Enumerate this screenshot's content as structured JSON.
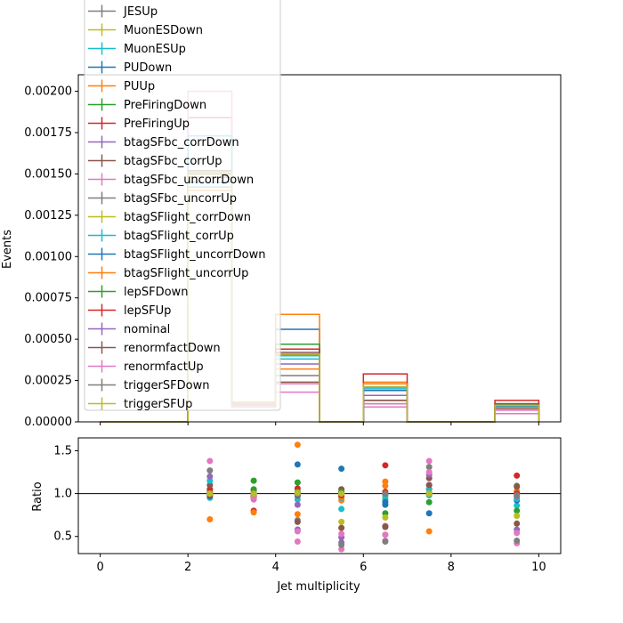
{
  "chart_data": [
    {
      "type": "histogram-step",
      "ylabel": "Events",
      "xlim": [
        -0.5,
        10.5
      ],
      "ylim": [
        0,
        0.0021
      ],
      "x_ticks": [
        0,
        2,
        4,
        6,
        8,
        10
      ],
      "y_ticks": [
        0.0,
        0.00025,
        0.0005,
        0.00075,
        0.001,
        0.00125,
        0.0015,
        0.00175,
        0.002
      ],
      "y_tick_labels": [
        "0.00000",
        "0.00025",
        "0.00050",
        "0.00075",
        "0.00100",
        "0.00125",
        "0.00150",
        "0.00175",
        "0.00200"
      ],
      "bin_edges": [
        0,
        1,
        2,
        3,
        4,
        5,
        6,
        7,
        8,
        9,
        10
      ],
      "legend_position": "upper-left",
      "legend_entries": [
        "JESUp",
        "MuonESDown",
        "MuonESUp",
        "PUDown",
        "PUUp",
        "PreFiringDown",
        "PreFiringUp",
        "btagSFbc_corrDown",
        "btagSFbc_corrUp",
        "btagSFbc_uncorrDown",
        "btagSFbc_uncorrUp",
        "btagSFlight_corrDown",
        "btagSFlight_corrUp",
        "btagSFlight_uncorrDown",
        "btagSFlight_uncorrUp",
        "lepSFDown",
        "lepSFUp",
        "nominal",
        "renormfactDown",
        "renormfactUp",
        "triggerSFDown",
        "triggerSFUp"
      ],
      "series": [
        {
          "name": "JESUp",
          "color": "#7f7f7f",
          "values": [
            0,
            0,
            0.0015,
            0.00011,
            0.00041,
            0,
            0.00021,
            0,
            0,
            0.0001
          ]
        },
        {
          "name": "MuonESDown",
          "color": "#bcbd22",
          "values": [
            0,
            0,
            0.00151,
            0.00011,
            0.00041,
            0,
            0.00021,
            0,
            0,
            0.0001
          ]
        },
        {
          "name": "MuonESUp",
          "color": "#17becf",
          "values": [
            0,
            0,
            0.00142,
            0.0001,
            0.00038,
            0,
            0.00019,
            0,
            0,
            9e-05
          ]
        },
        {
          "name": "PUDown",
          "color": "#1f77b4",
          "values": [
            0,
            0,
            0.00145,
            0.00011,
            0.00056,
            0,
            0.00019,
            0,
            0,
            9e-05
          ]
        },
        {
          "name": "PUUp",
          "color": "#ff7f0e",
          "values": [
            0,
            0,
            0.0014,
            0.0001,
            0.00065,
            0,
            0.00024,
            0,
            0,
            0.0001
          ]
        },
        {
          "name": "PreFiringDown",
          "color": "#2ca02c",
          "values": [
            0,
            0,
            0.00152,
            0.00012,
            0.00047,
            0,
            0.00021,
            0,
            0,
            0.00011
          ]
        },
        {
          "name": "PreFiringUp",
          "color": "#d62728",
          "values": [
            0,
            0,
            0.00184,
            0.00011,
            0.00044,
            0,
            0.00029,
            0,
            0,
            0.00013
          ]
        },
        {
          "name": "btagSFbc_corrDown",
          "color": "#9467bd",
          "values": [
            0,
            0,
            0.0015,
            0.00011,
            0.00035,
            0,
            0.00016,
            0,
            0,
            0.0001
          ]
        },
        {
          "name": "btagSFbc_corrUp",
          "color": "#8c564b",
          "values": [
            0,
            0,
            0.00152,
            0.00011,
            0.00042,
            0,
            0.00013,
            0,
            0,
            0.00011
          ]
        },
        {
          "name": "btagSFbc_uncorrDown",
          "color": "#e377c2",
          "values": [
            0,
            0,
            0.002,
            9e-05,
            0.00018,
            0,
            9e-05,
            0,
            0,
            5e-05
          ]
        },
        {
          "name": "btagSFbc_uncorrUp",
          "color": "#7f7f7f",
          "values": [
            0,
            0,
            0.00151,
            0.00011,
            0.00028,
            0,
            0.00011,
            0,
            0,
            0.0001
          ]
        },
        {
          "name": "btagSFlight_corrDown",
          "color": "#bcbd22",
          "values": [
            0,
            0,
            0.0015,
            0.00011,
            0.00041,
            0,
            0.00021,
            0,
            0,
            0.0001
          ]
        },
        {
          "name": "btagSFlight_corrUp",
          "color": "#17becf",
          "values": [
            0,
            0,
            0.00173,
            0.00011,
            0.0004,
            0,
            0.0002,
            0,
            0,
            9e-05
          ]
        },
        {
          "name": "btagSFlight_uncorrDown",
          "color": "#1f77b4",
          "values": [
            0,
            0,
            0.0015,
            0.00011,
            0.00041,
            0,
            0.00021,
            0,
            0,
            0.0001
          ]
        },
        {
          "name": "btagSFlight_uncorrUp",
          "color": "#ff7f0e",
          "values": [
            0,
            0,
            0.0015,
            0.00011,
            0.00032,
            0,
            0.00023,
            0,
            0,
            0.0001
          ]
        },
        {
          "name": "lepSFDown",
          "color": "#2ca02c",
          "values": [
            0,
            0,
            0.0015,
            0.00012,
            0.00041,
            0,
            0.00021,
            0,
            0,
            0.0001
          ]
        },
        {
          "name": "lepSFUp",
          "color": "#d62728",
          "values": [
            0,
            0,
            0.0015,
            0.00011,
            0.00041,
            0,
            0.00021,
            0,
            0,
            0.0001
          ]
        },
        {
          "name": "nominal",
          "color": "#9467bd",
          "values": [
            0,
            0,
            0.0015,
            0.00011,
            0.00041,
            0,
            0.00021,
            0,
            0,
            0.0001
          ]
        },
        {
          "name": "renormfactDown",
          "color": "#8c564b",
          "values": [
            0,
            0,
            0.00148,
            0.00011,
            0.00024,
            0,
            0.00013,
            0,
            0,
            8e-05
          ]
        },
        {
          "name": "renormfactUp",
          "color": "#e377c2",
          "values": [
            0,
            0,
            0.0015,
            0.00011,
            0.00023,
            0,
            0.00011,
            0,
            0,
            7e-05
          ]
        },
        {
          "name": "triggerSFDown",
          "color": "#7f7f7f",
          "values": [
            0,
            0,
            0.0015,
            0.00012,
            0.00041,
            0,
            0.00021,
            0,
            0,
            0.0001
          ]
        },
        {
          "name": "triggerSFUp",
          "color": "#bcbd22",
          "values": [
            0,
            0,
            0.00151,
            0.00012,
            0.00041,
            0,
            0.00021,
            0,
            0,
            0.0001
          ]
        }
      ]
    },
    {
      "type": "scatter",
      "xlabel": "Jet multiplicity",
      "ylabel": "Ratio",
      "xlim": [
        -0.5,
        10.5
      ],
      "ylim": [
        0.3,
        1.65
      ],
      "x_ticks": [
        0,
        2,
        4,
        6,
        8,
        10
      ],
      "y_ticks": [
        0.5,
        1.0,
        1.5
      ],
      "y_tick_labels": [
        "0.5",
        "1.0",
        "1.5"
      ],
      "reference_line": 1.0,
      "x": [
        2.5,
        3.5,
        4.5,
        5.5,
        6.5,
        7.5,
        9.5
      ],
      "series": [
        {
          "name": "JESUp",
          "color": "#7f7f7f",
          "values": [
            1.0,
            1.0,
            1.0,
            1.0,
            1.0,
            1.0,
            1.0
          ]
        },
        {
          "name": "MuonESDown",
          "color": "#bcbd22",
          "values": [
            1.01,
            1.02,
            0.99,
            0.67,
            0.96,
            1.05,
            0.97
          ]
        },
        {
          "name": "MuonESUp",
          "color": "#17becf",
          "values": [
            0.95,
            0.94,
            0.93,
            0.82,
            0.93,
            0.98,
            0.86
          ]
        },
        {
          "name": "PUDown",
          "color": "#1f77b4",
          "values": [
            0.97,
            0.97,
            1.34,
            1.29,
            0.9,
            0.77,
            0.92
          ]
        },
        {
          "name": "PUUp",
          "color": "#ff7f0e",
          "values": [
            0.7,
            0.97,
            1.57,
            0.92,
            1.14,
            0.56,
            1.03
          ]
        },
        {
          "name": "PreFiringDown",
          "color": "#2ca02c",
          "values": [
            1.02,
            1.15,
            1.13,
            1.02,
            1.0,
            0.9,
            1.09
          ]
        },
        {
          "name": "PreFiringUp",
          "color": "#d62728",
          "values": [
            1.05,
            0.8,
            1.06,
            0.97,
            1.33,
            1.05,
            1.21
          ]
        },
        {
          "name": "btagSFbc_corrDown",
          "color": "#9467bd",
          "values": [
            1.0,
            1.0,
            0.58,
            0.43,
            0.52,
            1.1,
            0.58
          ]
        },
        {
          "name": "btagSFbc_corrUp",
          "color": "#8c564b",
          "values": [
            1.1,
            1.04,
            1.02,
            1.05,
            0.62,
            1.18,
            1.08
          ]
        },
        {
          "name": "btagSFbc_uncorrDown",
          "color": "#e377c2",
          "values": [
            1.38,
            0.93,
            0.44,
            0.35,
            0.45,
            1.38,
            0.42
          ]
        },
        {
          "name": "btagSFbc_uncorrUp",
          "color": "#7f7f7f",
          "values": [
            1.27,
            1.0,
            0.69,
            0.4,
            0.44,
            1.31,
            0.45
          ]
        },
        {
          "name": "btagSFlight_corrDown",
          "color": "#bcbd22",
          "values": [
            1.0,
            1.0,
            1.0,
            1.0,
            1.0,
            1.0,
            1.0
          ]
        },
        {
          "name": "btagSFlight_corrUp",
          "color": "#17becf",
          "values": [
            1.15,
            1.0,
            0.97,
            0.95,
            0.98,
            1.05,
            0.94
          ]
        },
        {
          "name": "btagSFlight_uncorrDown",
          "color": "#1f77b4",
          "values": [
            1.0,
            1.0,
            1.0,
            1.0,
            0.87,
            1.0,
            1.0
          ]
        },
        {
          "name": "btagSFlight_uncorrUp",
          "color": "#ff7f0e",
          "values": [
            1.0,
            0.78,
            0.76,
            0.96,
            1.09,
            1.0,
            1.0
          ]
        },
        {
          "name": "lepSFDown",
          "color": "#2ca02c",
          "values": [
            1.0,
            1.05,
            1.02,
            1.02,
            0.77,
            1.0,
            0.8
          ]
        },
        {
          "name": "lepSFUp",
          "color": "#d62728",
          "values": [
            0.98,
            0.97,
            0.98,
            0.98,
            1.02,
            1.0,
            1.0
          ]
        },
        {
          "name": "nominal",
          "color": "#9467bd",
          "values": [
            1.2,
            1.0,
            0.87,
            0.49,
            0.62,
            1.22,
            0.97
          ]
        },
        {
          "name": "renormfactDown",
          "color": "#8c564b",
          "values": [
            0.99,
            0.95,
            0.67,
            0.6,
            0.61,
            1.1,
            0.65
          ]
        },
        {
          "name": "renormfactUp",
          "color": "#e377c2",
          "values": [
            1.0,
            0.95,
            0.56,
            0.53,
            0.52,
            1.25,
            0.54
          ]
        },
        {
          "name": "triggerSFDown",
          "color": "#7f7f7f",
          "values": [
            1.0,
            1.0,
            0.99,
            1.0,
            1.0,
            1.0,
            0.98
          ]
        },
        {
          "name": "triggerSFUp",
          "color": "#bcbd22",
          "values": [
            1.0,
            1.0,
            1.01,
            1.0,
            0.72,
            1.0,
            0.74
          ]
        }
      ]
    }
  ]
}
